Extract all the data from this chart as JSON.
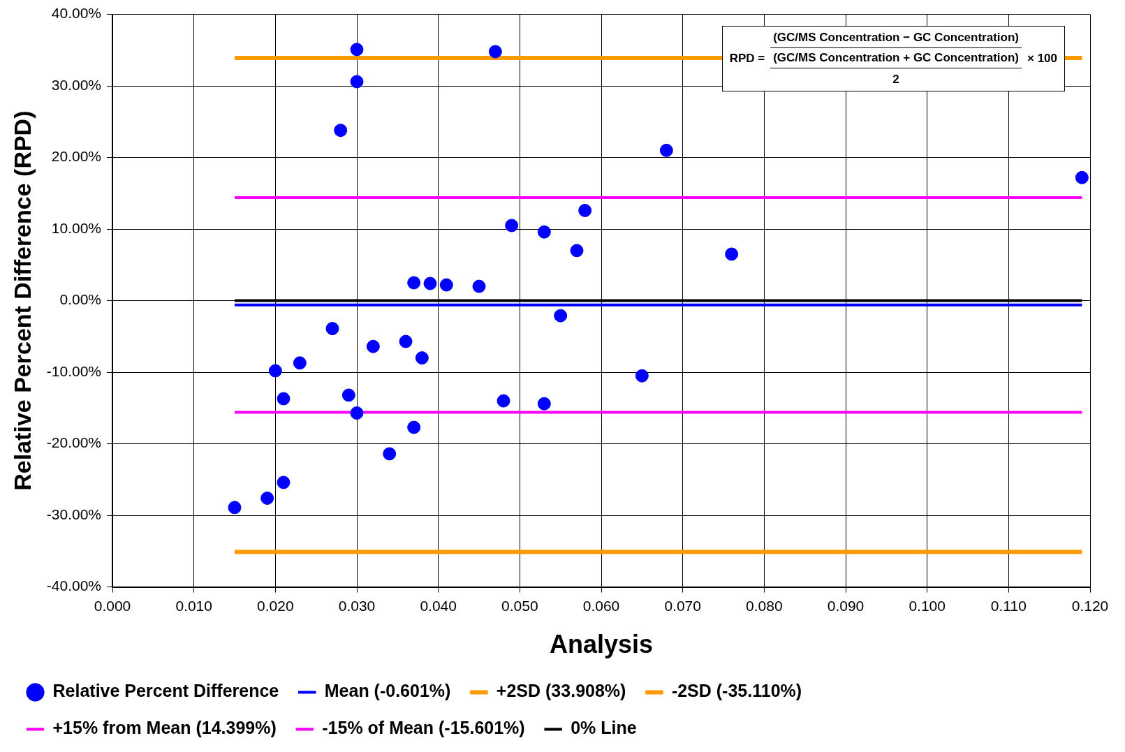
{
  "chart_data": {
    "type": "scatter",
    "xlabel": "Analysis",
    "ylabel": "Relative Percent Difference (RPD)",
    "xlim": [
      0,
      0.12
    ],
    "ylim": [
      -40,
      40
    ],
    "xticks": [
      {
        "value": 0,
        "label": "0.000"
      },
      {
        "value": 0.01,
        "label": "0.010"
      },
      {
        "value": 0.02,
        "label": "0.020"
      },
      {
        "value": 0.03,
        "label": "0.030"
      },
      {
        "value": 0.04,
        "label": "0.040"
      },
      {
        "value": 0.05,
        "label": "0.050"
      },
      {
        "value": 0.06,
        "label": "0.060"
      },
      {
        "value": 0.07,
        "label": "0.070"
      },
      {
        "value": 0.08,
        "label": "0.080"
      },
      {
        "value": 0.09,
        "label": "0.090"
      },
      {
        "value": 0.1,
        "label": "0.100"
      },
      {
        "value": 0.11,
        "label": "0.110"
      },
      {
        "value": 0.12,
        "label": "0.120"
      }
    ],
    "yticks": [
      {
        "value": -40,
        "label": "-40.00%"
      },
      {
        "value": -30,
        "label": "-30.00%"
      },
      {
        "value": -20,
        "label": "-20.00%"
      },
      {
        "value": -10,
        "label": "-10.00%"
      },
      {
        "value": 0,
        "label": "0.00%"
      },
      {
        "value": 10,
        "label": "10.00%"
      },
      {
        "value": 20,
        "label": "20.00%"
      },
      {
        "value": 30,
        "label": "30.00%"
      },
      {
        "value": 40,
        "label": "40.00%"
      }
    ],
    "grid": true,
    "legend": "bottom",
    "annotations": [
      "RPD =",
      "(GC/MS Concentration − GC Concentration)",
      "(GC/MS Concentration + GC Concentration)",
      "2",
      "× 100"
    ],
    "series": [
      {
        "name": "Relative Percent Difference",
        "marker": "circle",
        "color": "#0000ff",
        "x": [
          0.015,
          0.019,
          0.021,
          0.02,
          0.021,
          0.023,
          0.027,
          0.028,
          0.029,
          0.03,
          0.03,
          0.03,
          0.032,
          0.034,
          0.036,
          0.037,
          0.037,
          0.038,
          0.039,
          0.041,
          0.045,
          0.047,
          0.048,
          0.049,
          0.053,
          0.053,
          0.055,
          0.057,
          0.058,
          0.065,
          0.068,
          0.076,
          0.119
        ],
        "values": [
          -28.9,
          -27.6,
          -25.4,
          -9.8,
          -13.7,
          -8.7,
          -3.9,
          23.8,
          -13.2,
          35.1,
          30.6,
          -15.7,
          -6.4,
          -21.4,
          -5.7,
          2.5,
          -17.7,
          -8.0,
          2.4,
          2.2,
          2.0,
          34.8,
          -14.0,
          10.5,
          9.6,
          -14.4,
          -2.1,
          7.0,
          12.6,
          -10.5,
          21.0,
          6.5,
          17.2
        ]
      },
      {
        "name": "Mean (-0.601%)",
        "type": "line",
        "color": "#0000ff",
        "marker": "none",
        "x": [
          0.015,
          0.119
        ],
        "values": [
          -0.601,
          -0.601
        ]
      },
      {
        "name": "+2SD (33.908%)",
        "type": "line",
        "color": "#ff9900",
        "marker": "none",
        "x": [
          0.015,
          0.119
        ],
        "values": [
          33.908,
          33.908
        ]
      },
      {
        "name": "-2SD (-35.110%)",
        "type": "line",
        "color": "#ff9900",
        "marker": "none",
        "x": [
          0.015,
          0.119
        ],
        "values": [
          -35.11,
          -35.11
        ]
      },
      {
        "name": "+15% from Mean (14.399%)",
        "type": "line",
        "color": "#ff00ff",
        "marker": "none",
        "x": [
          0.015,
          0.119
        ],
        "values": [
          14.399,
          14.399
        ]
      },
      {
        "name": "-15% of Mean (-15.601%)",
        "type": "line",
        "color": "#ff00ff",
        "marker": "none",
        "x": [
          0.015,
          0.119
        ],
        "values": [
          -15.601,
          -15.601
        ]
      },
      {
        "name": "0% Line",
        "type": "line",
        "color": "#000000",
        "marker": "none",
        "x": [
          0.015,
          0.119
        ],
        "values": [
          0,
          0
        ]
      }
    ]
  }
}
